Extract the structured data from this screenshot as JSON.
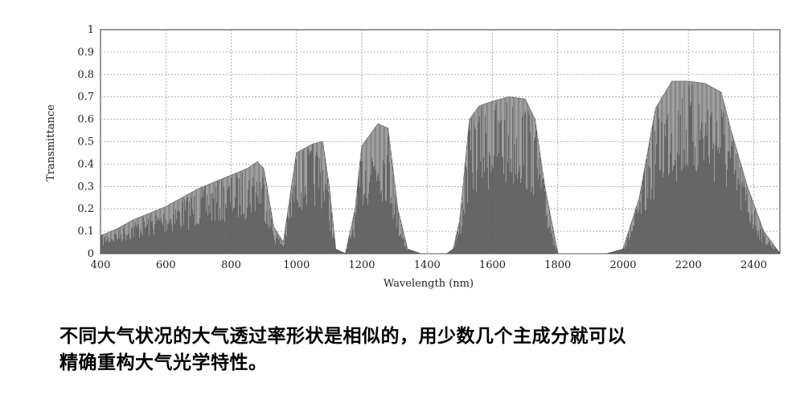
{
  "chart_data": {
    "type": "area",
    "xlabel": "Wavelength (nm)",
    "ylabel": "Transmittance",
    "xlim": [
      400,
      2480
    ],
    "ylim": [
      0,
      1
    ],
    "xticks": [
      400,
      600,
      800,
      1000,
      1200,
      1400,
      1600,
      1800,
      2000,
      2200,
      2400
    ],
    "yticks": [
      0,
      0.1,
      0.2,
      0.3,
      0.4,
      0.5,
      0.6,
      0.7,
      0.8,
      0.9,
      1
    ],
    "ytick_labels": [
      "0",
      "0.1",
      "0.2",
      "0.3",
      "0.4",
      "0.5",
      "0.6",
      "0.7",
      "0.8",
      "0.9",
      "1"
    ],
    "grid": true,
    "series": [
      {
        "x": [
          400,
          450,
          500,
          550,
          600,
          650,
          700,
          750,
          800,
          850,
          880,
          900,
          930,
          960,
          1000,
          1050,
          1080,
          1100,
          1120,
          1150,
          1180,
          1200,
          1250,
          1280,
          1310,
          1340,
          1380,
          1420,
          1460,
          1480,
          1500,
          1530,
          1560,
          1600,
          1650,
          1700,
          1730,
          1760,
          1800,
          1900,
          1950,
          2000,
          2050,
          2100,
          2150,
          2200,
          2250,
          2300,
          2330,
          2380,
          2430,
          2480
        ],
        "values": [
          0.08,
          0.11,
          0.15,
          0.18,
          0.21,
          0.25,
          0.29,
          0.32,
          0.35,
          0.38,
          0.41,
          0.38,
          0.12,
          0.05,
          0.45,
          0.49,
          0.5,
          0.3,
          0.02,
          0.0,
          0.2,
          0.48,
          0.58,
          0.56,
          0.2,
          0.02,
          0.0,
          0.0,
          0.0,
          0.02,
          0.15,
          0.6,
          0.66,
          0.68,
          0.7,
          0.69,
          0.6,
          0.3,
          0.0,
          0.0,
          0.0,
          0.02,
          0.25,
          0.65,
          0.77,
          0.77,
          0.76,
          0.72,
          0.55,
          0.3,
          0.1,
          0.0
        ]
      }
    ]
  },
  "caption": {
    "line1": "不同大气状况的大气透过率形状是相似的，用少数几个主成分就可以",
    "line2": "精确重构大气光学特性。"
  },
  "colors": {
    "curve": "#555555",
    "grid": "#9a9a9a",
    "axis": "#333333"
  }
}
